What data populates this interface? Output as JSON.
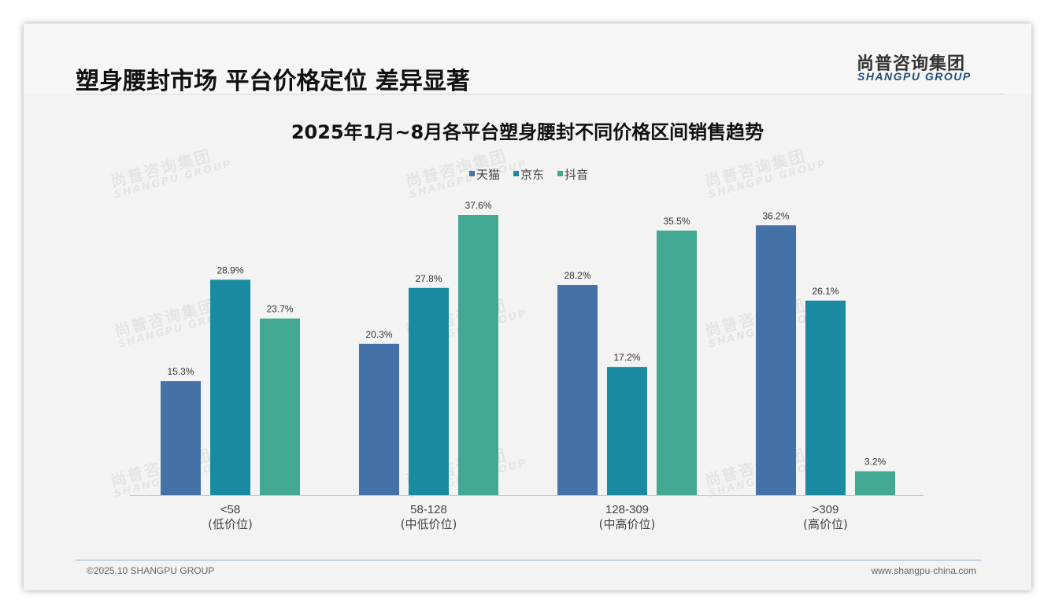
{
  "header": {
    "title": "塑身腰封市场 平台价格定位 差异显著"
  },
  "logo": {
    "cn": "尚普咨询集团",
    "en": "SHANGPU GROUP"
  },
  "watermark": {
    "cn": "尚普咨询集团",
    "en": "SHANGPU GROUP"
  },
  "footer": {
    "copyright": "©2025.10 SHANGPU GROUP",
    "website": "www.shangpu-china.com"
  },
  "colors": {
    "tmall": "#4472a8",
    "jd": "#1a8aa0",
    "douyin": "#42a892"
  },
  "chart_data": {
    "type": "bar",
    "title": "2025年1月~8月各平台塑身腰封不同价格区间销售趋势",
    "categories": [
      "<58",
      "58-128",
      "128-309",
      ">309"
    ],
    "category_sublabels": [
      "(低价位)",
      "(中低价位)",
      "(中高价位)",
      "(高价位)"
    ],
    "series": [
      {
        "name": "天猫",
        "values": [
          15.3,
          20.3,
          28.2,
          36.2
        ],
        "labels": [
          "15.3%",
          "20.3%",
          "28.2%",
          "36.2%"
        ]
      },
      {
        "name": "京东",
        "values": [
          28.9,
          27.8,
          17.2,
          26.1
        ],
        "labels": [
          "28.9%",
          "27.8%",
          "17.2%",
          "26.1%"
        ]
      },
      {
        "name": "抖音",
        "values": [
          23.7,
          37.6,
          35.5,
          3.2
        ],
        "labels": [
          "23.7%",
          "37.6%",
          "35.5%",
          "3.2%"
        ]
      }
    ],
    "unit": "%",
    "legend": "top-center",
    "grid": false
  }
}
